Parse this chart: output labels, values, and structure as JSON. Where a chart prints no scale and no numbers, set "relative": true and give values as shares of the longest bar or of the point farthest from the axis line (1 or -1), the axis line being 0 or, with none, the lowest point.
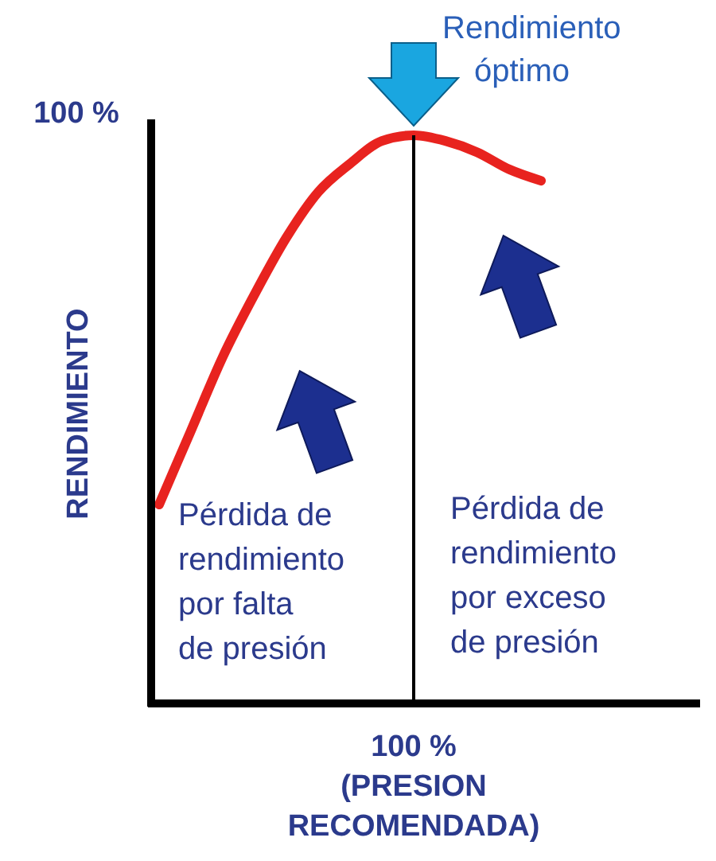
{
  "chart_data": {
    "type": "line",
    "relative": true,
    "ylabel": "RENDIMIENTO",
    "xlabel": "(PRESION RECOMENDADA)",
    "categories": [
      null,
      null,
      null,
      null,
      null,
      null,
      null,
      null,
      null,
      null,
      null,
      null,
      null
    ],
    "series": [
      {
        "color": "#e8231f",
        "values": [
          0.35,
          0.48,
          0.61,
          0.72,
          0.82,
          0.9,
          0.95,
          0.99,
          1.0,
          0.99,
          0.97,
          0.94,
          0.92
        ]
      }
    ],
    "annotations": [
      "100 %",
      "100 %",
      "Rendimiento óptimo",
      "Pérdida de rendimiento por falta de presión",
      "Pérdida de rendimiento por exceso de presión"
    ],
    "marker": "none",
    "line_style": "solid"
  }
}
